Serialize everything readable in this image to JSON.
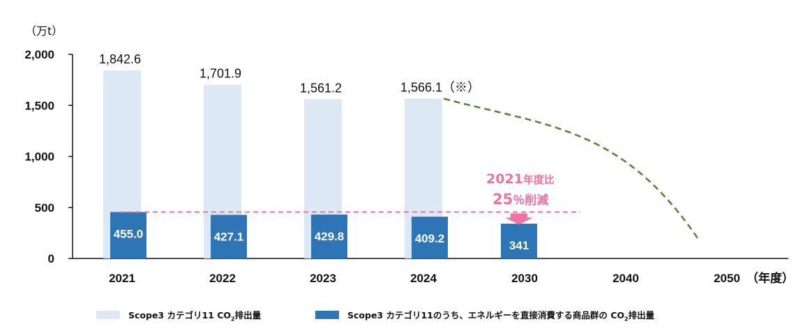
{
  "chart_data": {
    "type": "bar",
    "unit_label": "（万t）",
    "x_suffix": "（年度）",
    "categories": [
      "2021",
      "2022",
      "2023",
      "2024",
      "2030",
      "2040",
      "2050"
    ],
    "ylim": [
      0,
      2000
    ],
    "y_ticks": [
      "0",
      "500",
      "1,000",
      "1,500",
      "2,000"
    ],
    "series": [
      {
        "name": "Scope3 カテゴリ11 CO2排出量",
        "color": "#dde8f5",
        "values": [
          1842.6,
          1701.9,
          1561.2,
          1566.1,
          null,
          null,
          null
        ],
        "labels": [
          "1,842.6",
          "1,701.9",
          "1,561.2",
          "1,566.1（※）",
          "",
          "",
          ""
        ]
      },
      {
        "name": "Scope3 カテゴリ11のうち、エネルギーを直接消費する商品群の CO2排出量",
        "color": "#2e75b6",
        "values": [
          455.0,
          427.1,
          429.8,
          409.2,
          341,
          null,
          null
        ],
        "labels": [
          "455.0",
          "427.1",
          "429.8",
          "409.2",
          "341",
          "",
          ""
        ]
      }
    ],
    "reference_line": {
      "value": 455.0,
      "color": "#f0729f",
      "style": "dashed"
    },
    "projection_line": {
      "color": "#548235",
      "style": "dashed",
      "from": [
        "2024",
        1566.1
      ],
      "to": [
        "2050",
        200
      ]
    },
    "annotation": {
      "line1_num": "2021",
      "line1_text": "年度比",
      "line2_num": "25",
      "line2_text": "％削減",
      "color": "#f0729f"
    }
  },
  "legend": {
    "item1_prefix": "Scope3 カテゴリ11 CO",
    "item1_sub": "2",
    "item1_suffix": "排出量",
    "item2_prefix": "Scope3 カテゴリ11のうち、エネルギーを直接消費する商品群の CO",
    "item2_sub": "2",
    "item2_suffix": "排出量"
  }
}
